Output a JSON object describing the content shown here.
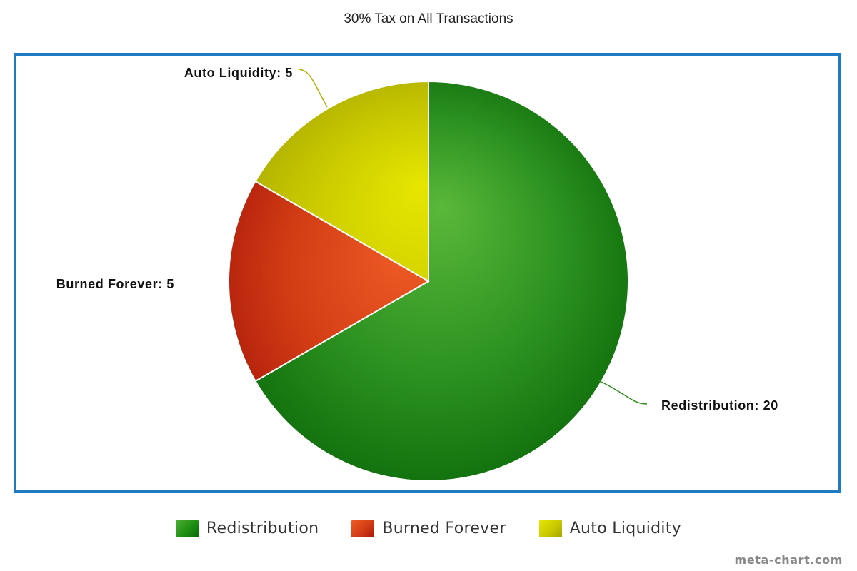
{
  "chart_data": {
    "type": "pie",
    "title": "30% Tax on All Transactions",
    "categories": [
      "Redistribution",
      "Burned Forever",
      "Auto Liquidity"
    ],
    "values": [
      20,
      5,
      5
    ],
    "data_labels": [
      "Redistribution: 20",
      "Burned Forever: 5",
      "Auto Liquidity: 5"
    ],
    "colors": [
      "#1e8f12",
      "#d63c14",
      "#d0d000"
    ],
    "legend_position": "bottom",
    "start_angle": "12 o'clock",
    "direction": "clockwise"
  },
  "legend": {
    "items": [
      {
        "label": "Redistribution",
        "color": "#1e8f12"
      },
      {
        "label": "Burned Forever",
        "color": "#d63c14"
      },
      {
        "label": "Auto Liquidity",
        "color": "#d0d000"
      }
    ]
  },
  "footer": {
    "credit": "meta-chart.com"
  }
}
